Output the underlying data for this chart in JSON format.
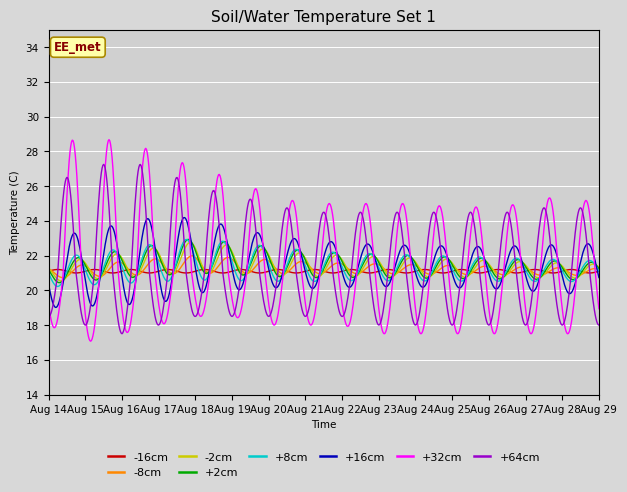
{
  "title": "Soil/Water Temperature Set 1",
  "xlabel": "Time",
  "ylabel": "Temperature (C)",
  "ylim": [
    14,
    35
  ],
  "yticks": [
    14,
    16,
    18,
    20,
    22,
    24,
    26,
    28,
    30,
    32,
    34
  ],
  "x_tick_labels": [
    "Aug 14",
    "Aug 15",
    "Aug 16",
    "Aug 17",
    "Aug 18",
    "Aug 19",
    "Aug 20",
    "Aug 21",
    "Aug 22",
    "Aug 23",
    "Aug 24",
    "Aug 25",
    "Aug 26",
    "Aug 27",
    "Aug 28",
    "Aug 29"
  ],
  "annotation_text": "EE_met",
  "annotation_text_color": "#880000",
  "series": [
    {
      "label": "-16cm",
      "color": "#cc0000"
    },
    {
      "label": "-8cm",
      "color": "#ff8800"
    },
    {
      "label": "-2cm",
      "color": "#cccc00"
    },
    {
      "label": "+2cm",
      "color": "#00aa00"
    },
    {
      "label": "+8cm",
      "color": "#00cccc"
    },
    {
      "label": "+16cm",
      "color": "#0000bb"
    },
    {
      "label": "+32cm",
      "color": "#ff00ff"
    },
    {
      "label": "+64cm",
      "color": "#9900cc"
    }
  ],
  "grid_color": "#ffffff",
  "linewidth": 1.0,
  "legend_fontsize": 8,
  "title_fontsize": 11,
  "axis_fontsize": 7.5
}
